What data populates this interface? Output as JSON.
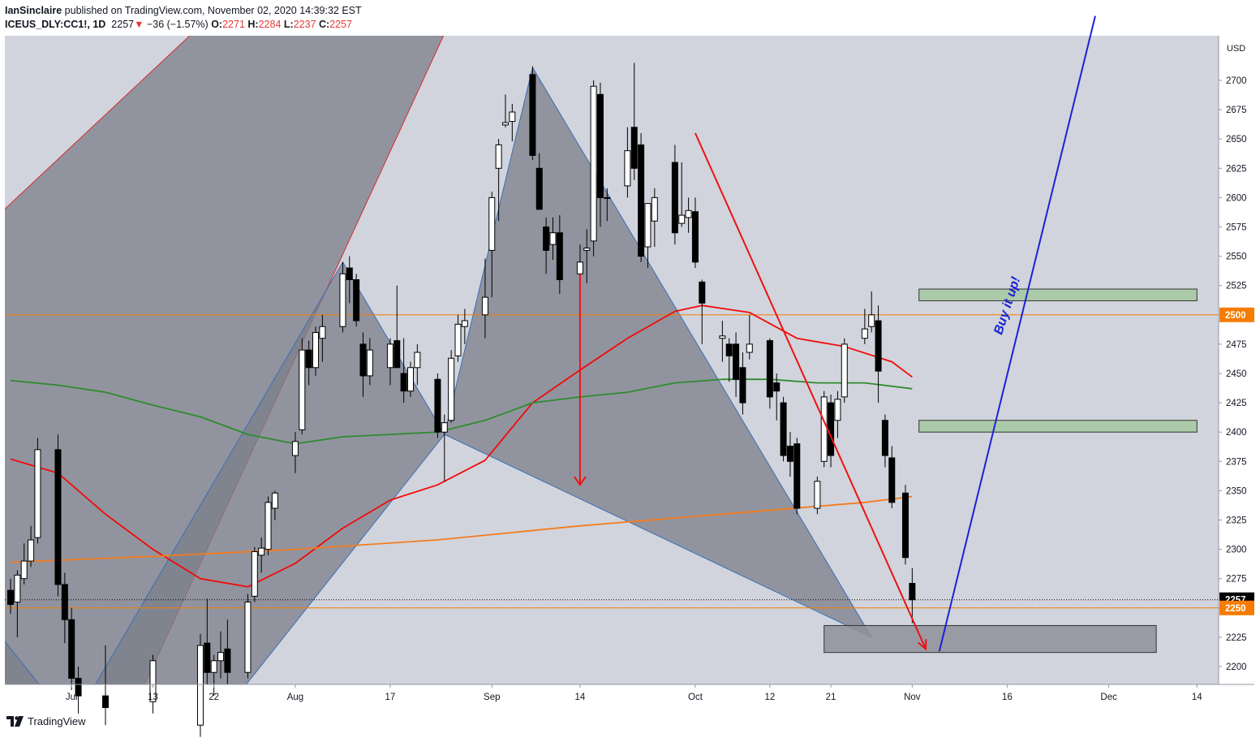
{
  "header": {
    "author": "IanSinclaire",
    "published_text": " published on TradingView.com, November 02, 2020 14:39:32 EST",
    "symbol": "ICEUS_DLY:CC1!, 1D",
    "last": "2257",
    "change": "−36 (−1.57%)",
    "o_label": "O:",
    "o_value": "2271",
    "h_label": "H:",
    "h_value": "2284",
    "l_label": "L:",
    "l_value": "2237",
    "c_label": "C:",
    "c_value": "2257"
  },
  "colors": {
    "background": "#d1d4dc",
    "pattern_fill": "#7b7f8a",
    "bull": "#ffffff",
    "bear": "#000000",
    "ma_red": "#f20a0a",
    "ma_green": "#2e8b2e",
    "ma_orange": "#f57c1f",
    "hline_orange": "#f57c00",
    "trend_blue": "#1a22d8",
    "zone_green": "#a5c8a0",
    "zone_dark": "#8e9099"
  },
  "footer": {
    "brand": "TradingView"
  },
  "chart_data": {
    "type": "candlestick",
    "currency": "USD",
    "ylim": [
      2185,
      2740
    ],
    "y_ticks": [
      2200,
      2225,
      2250,
      2275,
      2300,
      2325,
      2350,
      2375,
      2400,
      2425,
      2450,
      2475,
      2500,
      2525,
      2550,
      2575,
      2600,
      2625,
      2650,
      2675,
      2700
    ],
    "x_range": [
      "2020-06-22",
      "2020-12-16"
    ],
    "x_ticks": [
      {
        "date": "2020-07-01",
        "label": "Jul"
      },
      {
        "date": "2020-07-13",
        "label": "13"
      },
      {
        "date": "2020-07-22",
        "label": "22"
      },
      {
        "date": "2020-08-03",
        "label": "Aug"
      },
      {
        "date": "2020-08-17",
        "label": "17"
      },
      {
        "date": "2020-09-01",
        "label": "Sep"
      },
      {
        "date": "2020-09-14",
        "label": "14"
      },
      {
        "date": "2020-10-01",
        "label": "Oct"
      },
      {
        "date": "2020-10-12",
        "label": "12"
      },
      {
        "date": "2020-10-21",
        "label": "21"
      },
      {
        "date": "2020-11-02",
        "label": "Nov"
      },
      {
        "date": "2020-11-16",
        "label": "16"
      },
      {
        "date": "2020-12-01",
        "label": "Dec"
      },
      {
        "date": "2020-12-14",
        "label": "14"
      }
    ],
    "price_labels": [
      {
        "value": 2500,
        "text": "2500",
        "color": "#f57c00"
      },
      {
        "value": 2257,
        "text": "2257",
        "color": "#000000"
      },
      {
        "value": 2250,
        "text": "2250",
        "color": "#f57c00"
      }
    ],
    "horizontal_lines": [
      2500,
      2250
    ],
    "last_price_line": 2257,
    "candles": [
      {
        "date": "2020-06-22",
        "o": 2265,
        "h": 2275,
        "l": 2245,
        "c": 2253
      },
      {
        "date": "2020-06-23",
        "o": 2255,
        "h": 2282,
        "l": 2225,
        "c": 2278
      },
      {
        "date": "2020-06-24",
        "o": 2275,
        "h": 2305,
        "l": 2270,
        "c": 2290
      },
      {
        "date": "2020-06-25",
        "o": 2290,
        "h": 2320,
        "l": 2285,
        "c": 2308
      },
      {
        "date": "2020-06-26",
        "o": 2310,
        "h": 2395,
        "l": 2305,
        "c": 2385
      },
      {
        "date": "2020-06-29",
        "o": 2385,
        "h": 2398,
        "l": 2260,
        "c": 2270
      },
      {
        "date": "2020-06-30",
        "o": 2270,
        "h": 2280,
        "l": 2220,
        "c": 2240
      },
      {
        "date": "2020-07-01",
        "o": 2240,
        "h": 2250,
        "l": 2180,
        "c": 2190
      },
      {
        "date": "2020-07-02",
        "o": 2190,
        "h": 2200,
        "l": 2160,
        "c": 2175
      },
      {
        "date": "2020-07-06",
        "o": 2175,
        "h": 2218,
        "l": 2150,
        "c": 2165
      },
      {
        "date": "2020-07-13",
        "o": 2170,
        "h": 2210,
        "l": 2160,
        "c": 2205
      },
      {
        "date": "2020-07-20",
        "o": 2150,
        "h": 2228,
        "l": 2140,
        "c": 2218
      },
      {
        "date": "2020-07-21",
        "o": 2220,
        "h": 2258,
        "l": 2185,
        "c": 2195
      },
      {
        "date": "2020-07-22",
        "o": 2195,
        "h": 2210,
        "l": 2175,
        "c": 2205
      },
      {
        "date": "2020-07-23",
        "o": 2205,
        "h": 2230,
        "l": 2190,
        "c": 2212
      },
      {
        "date": "2020-07-24",
        "o": 2215,
        "h": 2240,
        "l": 2185,
        "c": 2195
      },
      {
        "date": "2020-07-27",
        "o": 2195,
        "h": 2262,
        "l": 2190,
        "c": 2255
      },
      {
        "date": "2020-07-28",
        "o": 2260,
        "h": 2302,
        "l": 2255,
        "c": 2298
      },
      {
        "date": "2020-07-29",
        "o": 2295,
        "h": 2310,
        "l": 2280,
        "c": 2301
      },
      {
        "date": "2020-07-30",
        "o": 2300,
        "h": 2345,
        "l": 2295,
        "c": 2340
      },
      {
        "date": "2020-07-31",
        "o": 2335,
        "h": 2350,
        "l": 2325,
        "c": 2348
      },
      {
        "date": "2020-08-03",
        "o": 2380,
        "h": 2400,
        "l": 2365,
        "c": 2392
      },
      {
        "date": "2020-08-04",
        "o": 2402,
        "h": 2480,
        "l": 2398,
        "c": 2470
      },
      {
        "date": "2020-08-05",
        "o": 2470,
        "h": 2478,
        "l": 2440,
        "c": 2455
      },
      {
        "date": "2020-08-06",
        "o": 2455,
        "h": 2490,
        "l": 2448,
        "c": 2485
      },
      {
        "date": "2020-08-07",
        "o": 2480,
        "h": 2500,
        "l": 2460,
        "c": 2490
      },
      {
        "date": "2020-08-10",
        "o": 2490,
        "h": 2545,
        "l": 2485,
        "c": 2535
      },
      {
        "date": "2020-08-11",
        "o": 2540,
        "h": 2550,
        "l": 2510,
        "c": 2530
      },
      {
        "date": "2020-08-12",
        "o": 2530,
        "h": 2535,
        "l": 2490,
        "c": 2495
      },
      {
        "date": "2020-08-13",
        "o": 2475,
        "h": 2485,
        "l": 2430,
        "c": 2448
      },
      {
        "date": "2020-08-14",
        "o": 2448,
        "h": 2480,
        "l": 2440,
        "c": 2470
      },
      {
        "date": "2020-08-17",
        "o": 2455,
        "h": 2480,
        "l": 2440,
        "c": 2475
      },
      {
        "date": "2020-08-18",
        "o": 2478,
        "h": 2525,
        "l": 2455,
        "c": 2455
      },
      {
        "date": "2020-08-19",
        "o": 2450,
        "h": 2480,
        "l": 2425,
        "c": 2435
      },
      {
        "date": "2020-08-20",
        "o": 2435,
        "h": 2460,
        "l": 2430,
        "c": 2455
      },
      {
        "date": "2020-08-21",
        "o": 2455,
        "h": 2475,
        "l": 2440,
        "c": 2468
      },
      {
        "date": "2020-08-24",
        "o": 2445,
        "h": 2450,
        "l": 2395,
        "c": 2400
      },
      {
        "date": "2020-08-25",
        "o": 2400,
        "h": 2415,
        "l": 2358,
        "c": 2408
      },
      {
        "date": "2020-08-26",
        "o": 2410,
        "h": 2470,
        "l": 2408,
        "c": 2463
      },
      {
        "date": "2020-08-27",
        "o": 2465,
        "h": 2500,
        "l": 2460,
        "c": 2492
      },
      {
        "date": "2020-08-28",
        "o": 2490,
        "h": 2505,
        "l": 2475,
        "c": 2495
      },
      {
        "date": "2020-08-31",
        "o": 2500,
        "h": 2548,
        "l": 2480,
        "c": 2515
      },
      {
        "date": "2020-09-01",
        "o": 2555,
        "h": 2605,
        "l": 2515,
        "c": 2600
      },
      {
        "date": "2020-09-02",
        "o": 2625,
        "h": 2650,
        "l": 2580,
        "c": 2645
      },
      {
        "date": "2020-09-03",
        "o": 2662,
        "h": 2688,
        "l": 2660,
        "c": 2664
      },
      {
        "date": "2020-09-04",
        "o": 2665,
        "h": 2680,
        "l": 2648,
        "c": 2673
      },
      {
        "date": "2020-09-07",
        "o": 2705,
        "h": 2712,
        "l": 2632,
        "c": 2636
      },
      {
        "date": "2020-09-08",
        "o": 2625,
        "h": 2638,
        "l": 2590,
        "c": 2590
      },
      {
        "date": "2020-09-09",
        "o": 2575,
        "h": 2583,
        "l": 2535,
        "c": 2555
      },
      {
        "date": "2020-09-10",
        "o": 2560,
        "h": 2583,
        "l": 2547,
        "c": 2570
      },
      {
        "date": "2020-09-11",
        "o": 2570,
        "h": 2585,
        "l": 2518,
        "c": 2530
      },
      {
        "date": "2020-09-14",
        "o": 2535,
        "h": 2560,
        "l": 2525,
        "c": 2545
      },
      {
        "date": "2020-09-15",
        "o": 2555,
        "h": 2573,
        "l": 2527,
        "c": 2557
      },
      {
        "date": "2020-09-16",
        "o": 2563,
        "h": 2700,
        "l": 2550,
        "c": 2695
      },
      {
        "date": "2020-09-17",
        "o": 2688,
        "h": 2698,
        "l": 2575,
        "c": 2600
      },
      {
        "date": "2020-09-18",
        "o": 2600,
        "h": 2608,
        "l": 2580,
        "c": 2600
      },
      {
        "date": "2020-09-21",
        "o": 2610,
        "h": 2660,
        "l": 2600,
        "c": 2640
      },
      {
        "date": "2020-09-22",
        "o": 2660,
        "h": 2715,
        "l": 2615,
        "c": 2625
      },
      {
        "date": "2020-09-23",
        "o": 2645,
        "h": 2655,
        "l": 2545,
        "c": 2550
      },
      {
        "date": "2020-09-24",
        "o": 2558,
        "h": 2595,
        "l": 2540,
        "c": 2595
      },
      {
        "date": "2020-09-25",
        "o": 2580,
        "h": 2608,
        "l": 2558,
        "c": 2600
      },
      {
        "date": "2020-09-28",
        "o": 2630,
        "h": 2645,
        "l": 2560,
        "c": 2570
      },
      {
        "date": "2020-09-29",
        "o": 2578,
        "h": 2630,
        "l": 2575,
        "c": 2585
      },
      {
        "date": "2020-09-30",
        "o": 2583,
        "h": 2600,
        "l": 2570,
        "c": 2589
      },
      {
        "date": "2020-10-01",
        "o": 2588,
        "h": 2600,
        "l": 2540,
        "c": 2545
      },
      {
        "date": "2020-10-02",
        "o": 2528,
        "h": 2530,
        "l": 2475,
        "c": 2510
      },
      {
        "date": "2020-10-05",
        "o": 2480,
        "h": 2495,
        "l": 2460,
        "c": 2482
      },
      {
        "date": "2020-10-06",
        "o": 2475,
        "h": 2480,
        "l": 2443,
        "c": 2465
      },
      {
        "date": "2020-10-07",
        "o": 2475,
        "h": 2485,
        "l": 2430,
        "c": 2445
      },
      {
        "date": "2020-10-08",
        "o": 2455,
        "h": 2468,
        "l": 2415,
        "c": 2425
      },
      {
        "date": "2020-10-09",
        "o": 2468,
        "h": 2500,
        "l": 2462,
        "c": 2475
      },
      {
        "date": "2020-10-12",
        "o": 2478,
        "h": 2480,
        "l": 2420,
        "c": 2430
      },
      {
        "date": "2020-10-13",
        "o": 2442,
        "h": 2450,
        "l": 2410,
        "c": 2435
      },
      {
        "date": "2020-10-14",
        "o": 2425,
        "h": 2430,
        "l": 2375,
        "c": 2380
      },
      {
        "date": "2020-10-15",
        "o": 2388,
        "h": 2400,
        "l": 2362,
        "c": 2375
      },
      {
        "date": "2020-10-16",
        "o": 2390,
        "h": 2395,
        "l": 2330,
        "c": 2335
      },
      {
        "date": "2020-10-19",
        "o": 2335,
        "h": 2362,
        "l": 2330,
        "c": 2358
      },
      {
        "date": "2020-10-20",
        "o": 2375,
        "h": 2435,
        "l": 2370,
        "c": 2430
      },
      {
        "date": "2020-10-21",
        "o": 2425,
        "h": 2432,
        "l": 2370,
        "c": 2380
      },
      {
        "date": "2020-10-22",
        "o": 2410,
        "h": 2435,
        "l": 2395,
        "c": 2428
      },
      {
        "date": "2020-10-23",
        "o": 2430,
        "h": 2480,
        "l": 2425,
        "c": 2475
      },
      {
        "date": "2020-10-26",
        "o": 2480,
        "h": 2505,
        "l": 2475,
        "c": 2488
      },
      {
        "date": "2020-10-27",
        "o": 2490,
        "h": 2520,
        "l": 2485,
        "c": 2500
      },
      {
        "date": "2020-10-28",
        "o": 2495,
        "h": 2508,
        "l": 2425,
        "c": 2452
      },
      {
        "date": "2020-10-29",
        "o": 2410,
        "h": 2415,
        "l": 2370,
        "c": 2380
      },
      {
        "date": "2020-10-30",
        "o": 2378,
        "h": 2388,
        "l": 2335,
        "c": 2340
      },
      {
        "date": "2020-11-01",
        "o": 2348,
        "h": 2355,
        "l": 2287,
        "c": 2293
      },
      {
        "date": "2020-11-02",
        "o": 2271,
        "h": 2284,
        "l": 2237,
        "c": 2257
      }
    ],
    "moving_averages": [
      {
        "color": "#f20a0a",
        "points": [
          [
            "2020-06-22",
            2377
          ],
          [
            "2020-06-29",
            2365
          ],
          [
            "2020-07-06",
            2330
          ],
          [
            "2020-07-13",
            2300
          ],
          [
            "2020-07-20",
            2275
          ],
          [
            "2020-07-27",
            2268
          ],
          [
            "2020-08-03",
            2288
          ],
          [
            "2020-08-10",
            2318
          ],
          [
            "2020-08-17",
            2342
          ],
          [
            "2020-08-24",
            2355
          ],
          [
            "2020-08-31",
            2376
          ],
          [
            "2020-09-07",
            2425
          ],
          [
            "2020-09-14",
            2453
          ],
          [
            "2020-09-21",
            2480
          ],
          [
            "2020-09-28",
            2503
          ],
          [
            "2020-10-02",
            2508
          ],
          [
            "2020-10-09",
            2502
          ],
          [
            "2020-10-16",
            2480
          ],
          [
            "2020-10-23",
            2473
          ],
          [
            "2020-10-30",
            2460
          ],
          [
            "2020-11-02",
            2447
          ]
        ]
      },
      {
        "color": "#2e8b2e",
        "points": [
          [
            "2020-06-22",
            2444
          ],
          [
            "2020-06-29",
            2440
          ],
          [
            "2020-07-06",
            2434
          ],
          [
            "2020-07-13",
            2423
          ],
          [
            "2020-07-20",
            2413
          ],
          [
            "2020-07-27",
            2398
          ],
          [
            "2020-08-03",
            2390
          ],
          [
            "2020-08-10",
            2396
          ],
          [
            "2020-08-17",
            2398
          ],
          [
            "2020-08-24",
            2400
          ],
          [
            "2020-08-31",
            2410
          ],
          [
            "2020-09-07",
            2425
          ],
          [
            "2020-09-14",
            2430
          ],
          [
            "2020-09-21",
            2434
          ],
          [
            "2020-09-28",
            2442
          ],
          [
            "2020-10-05",
            2445
          ],
          [
            "2020-10-12",
            2445
          ],
          [
            "2020-10-19",
            2442
          ],
          [
            "2020-10-26",
            2442
          ],
          [
            "2020-11-02",
            2437
          ]
        ]
      },
      {
        "color": "#f57c1f",
        "points": [
          [
            "2020-06-22",
            2289
          ],
          [
            "2020-07-13",
            2294
          ],
          [
            "2020-08-03",
            2300
          ],
          [
            "2020-08-24",
            2308
          ],
          [
            "2020-09-14",
            2320
          ],
          [
            "2020-10-05",
            2330
          ],
          [
            "2020-10-26",
            2340
          ],
          [
            "2020-11-02",
            2345
          ]
        ]
      }
    ],
    "annotations": {
      "pattern_polygons": [
        {
          "points": [
            [
              "2020-08-10",
              2545
            ],
            [
              "2020-08-25",
              2398
            ],
            [
              "2020-07-22",
              2150
            ],
            [
              "2020-06-20",
              2150
            ],
            [
              "2020-06-20",
              2230
            ],
            [
              "2020-07-01",
              2150
            ]
          ]
        },
        {
          "points": [
            [
              "2020-09-07",
              2711
            ],
            [
              "2020-08-25",
              2398
            ],
            [
              "2020-10-27",
              2225
            ]
          ]
        }
      ],
      "channel_band": [
        [
          "2020-06-20",
          2584
        ],
        [
          "2020-07-28",
          2790
        ],
        [
          "2020-08-29",
          2790
        ],
        [
          "2020-07-09",
          2150
        ],
        [
          "2020-07-01",
          2150
        ],
        [
          "2020-06-20",
          2170
        ]
      ],
      "zones": [
        {
          "from": "2020-11-03",
          "to": "2020-12-14",
          "y1": 2512,
          "y2": 2522,
          "color": "#a5c8a0"
        },
        {
          "from": "2020-11-03",
          "to": "2020-12-14",
          "y1": 2400,
          "y2": 2410,
          "color": "#a5c8a0"
        },
        {
          "from": "2020-10-20",
          "to": "2020-12-08",
          "y1": 2212,
          "y2": 2235,
          "color": "#8e9099"
        }
      ],
      "red_arrow_down": {
        "x": "2020-09-14",
        "y_from": 2535,
        "y_to": 2355
      },
      "red_trend": {
        "from": [
          "2020-10-01",
          2655
        ],
        "to": [
          "2020-11-04",
          2215
        ]
      },
      "blue_trend": {
        "from": [
          "2020-11-06",
          2213
        ],
        "to": [
          "2020-11-29",
          2755
        ]
      },
      "text": "Buy it up!"
    }
  }
}
